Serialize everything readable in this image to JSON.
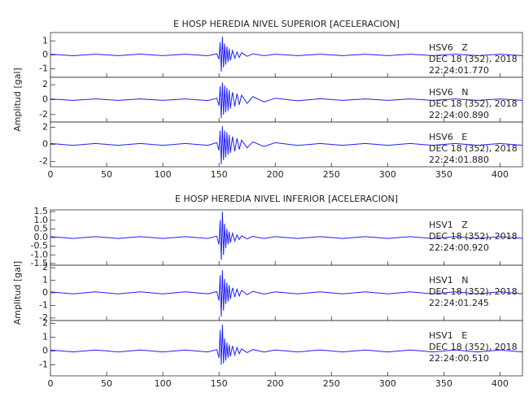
{
  "chart_data": [
    {
      "type": "line",
      "title": "E HOSP HEREDIA NIVEL SUPERIOR [ACELERACION]",
      "ylabel": "Amplitud [gal]",
      "xlim": [
        0,
        420
      ],
      "xticks": [
        0,
        50,
        100,
        150,
        200,
        250,
        300,
        350,
        400
      ],
      "x": [
        0,
        20,
        40,
        60,
        80,
        100,
        120,
        140,
        148,
        150,
        151,
        152,
        153,
        154,
        155,
        156,
        157,
        158,
        159,
        160,
        162,
        164,
        166,
        168,
        170,
        175,
        180,
        190,
        200,
        220,
        240,
        260,
        280,
        300,
        320,
        340,
        360,
        380,
        400,
        420
      ],
      "series": [
        {
          "color": "#1f1fff",
          "ylim": [
            -1.6,
            1.6
          ],
          "yticks": [
            -1,
            0,
            1
          ],
          "station": "HSV6   Z",
          "date": "DEC 18 (352), 2018",
          "time": "22:24:01.770",
          "values": [
            0.05,
            -0.06,
            0.05,
            -0.05,
            0.06,
            -0.05,
            0.05,
            -0.06,
            0.08,
            -0.3,
            0.9,
            -1.2,
            1.3,
            -0.9,
            0.8,
            -0.7,
            0.6,
            -0.5,
            0.45,
            -0.4,
            0.3,
            -0.25,
            0.2,
            -0.18,
            0.15,
            -0.1,
            0.08,
            -0.06,
            0.05,
            -0.05,
            0.05,
            -0.05,
            0.05,
            -0.05,
            0.05,
            -0.05,
            0.05,
            -0.05,
            0.05,
            -0.05
          ]
        },
        {
          "color": "#1f1fff",
          "ylim": [
            -3,
            3
          ],
          "yticks": [
            -2,
            0,
            2
          ],
          "station": "HSV6   N",
          "date": "DEC 18 (352), 2018",
          "time": "22:24:00.890",
          "values": [
            0.1,
            -0.1,
            0.1,
            -0.1,
            0.1,
            -0.1,
            0.1,
            -0.12,
            0.2,
            -0.8,
            1.8,
            -2.5,
            2.3,
            -2.0,
            1.9,
            -1.7,
            1.6,
            -1.5,
            1.3,
            -1.2,
            1.0,
            -0.9,
            0.8,
            -0.7,
            0.6,
            -0.5,
            0.4,
            -0.3,
            0.2,
            -0.15,
            0.12,
            -0.1,
            0.1,
            -0.1,
            0.1,
            -0.1,
            0.1,
            -0.1,
            0.1,
            -0.1
          ]
        },
        {
          "color": "#1f1fff",
          "ylim": [
            -2.6,
            2.6
          ],
          "yticks": [
            -2,
            0,
            2
          ],
          "station": "HSV6   E",
          "date": "DEC 18 (352), 2018",
          "time": "22:24:01.880",
          "values": [
            0.1,
            -0.1,
            0.1,
            -0.1,
            0.1,
            -0.1,
            0.1,
            -0.1,
            0.2,
            -0.7,
            1.6,
            -2.3,
            2.1,
            -1.8,
            1.6,
            -1.5,
            1.4,
            -1.2,
            1.1,
            -1.0,
            0.9,
            -0.8,
            0.7,
            -0.6,
            0.5,
            -0.4,
            0.3,
            -0.25,
            0.2,
            -0.12,
            0.1,
            -0.1,
            0.1,
            -0.1,
            0.1,
            -0.1,
            0.1,
            -0.1,
            0.1,
            -0.1
          ]
        }
      ]
    },
    {
      "type": "line",
      "title": "E HOSP HEREDIA NIVEL INFERIOR [ACELERACION]",
      "ylabel": "Amplitud [gal]",
      "xlim": [
        0,
        420
      ],
      "xticks": [
        0,
        50,
        100,
        150,
        200,
        250,
        300,
        350,
        400
      ],
      "x": [
        0,
        20,
        40,
        60,
        80,
        100,
        120,
        140,
        148,
        150,
        151,
        152,
        153,
        154,
        155,
        156,
        157,
        158,
        159,
        160,
        162,
        164,
        166,
        168,
        170,
        175,
        180,
        190,
        200,
        220,
        240,
        260,
        280,
        300,
        320,
        340,
        360,
        380,
        400,
        420
      ],
      "series": [
        {
          "color": "#1f1fff",
          "ylim": [
            -1.6,
            1.6
          ],
          "yticks": [
            {
              "value": -1.5,
              "label": "-1.5"
            },
            {
              "value": -1,
              "label": "-1.0"
            },
            -0.5,
            {
              "value": 0,
              "label": "0.0"
            },
            0.5,
            {
              "value": 1,
              "label": "1.0"
            },
            1.5
          ],
          "station": "HSV1   Z",
          "date": "DEC 18 (352), 2018",
          "time": "22:24:00.920",
          "values": [
            0.05,
            -0.05,
            0.05,
            -0.05,
            0.05,
            -0.05,
            0.05,
            -0.05,
            0.08,
            -0.4,
            1.0,
            -1.3,
            1.5,
            -1.0,
            0.8,
            -0.6,
            0.5,
            -0.4,
            0.35,
            -0.3,
            0.25,
            -0.2,
            0.15,
            -0.12,
            0.1,
            -0.08,
            0.07,
            -0.06,
            0.05,
            -0.05,
            0.05,
            -0.05,
            0.05,
            -0.05,
            0.05,
            -0.05,
            0.05,
            -0.05,
            0.05,
            -0.05
          ]
        },
        {
          "color": "#1f1fff",
          "ylim": [
            -2.2,
            2.2
          ],
          "yticks": [
            -2,
            -1,
            0,
            1,
            2
          ],
          "station": "HSV1   N",
          "date": "DEC 18 (352), 2018",
          "time": "22:24:01.245",
          "values": [
            0.08,
            -0.08,
            0.08,
            -0.08,
            0.08,
            -0.08,
            0.08,
            -0.08,
            0.1,
            -0.6,
            1.4,
            -1.9,
            1.8,
            -1.4,
            1.1,
            -0.9,
            0.8,
            -0.7,
            0.6,
            -0.5,
            0.4,
            -0.35,
            0.3,
            -0.25,
            0.2,
            -0.15,
            0.12,
            -0.1,
            0.08,
            -0.08,
            0.08,
            -0.08,
            0.08,
            -0.08,
            0.08,
            -0.08,
            0.08,
            -0.08,
            0.08,
            -0.08
          ]
        },
        {
          "color": "#1f1fff",
          "ylim": [
            -1.8,
            2.2
          ],
          "yticks": [
            -1,
            0,
            1,
            2
          ],
          "station": "HSV1   E",
          "date": "DEC 18 (352), 2018",
          "time": "22:24:00.510",
          "values": [
            0.07,
            -0.07,
            0.07,
            -0.07,
            0.07,
            -0.07,
            0.07,
            -0.07,
            0.1,
            -0.5,
            1.5,
            -1.0,
            1.9,
            -0.9,
            0.9,
            -0.7,
            0.6,
            -0.5,
            0.45,
            -0.4,
            0.35,
            -0.3,
            0.25,
            -0.2,
            0.15,
            -0.12,
            0.1,
            -0.08,
            0.07,
            -0.07,
            0.07,
            -0.07,
            0.07,
            -0.07,
            0.07,
            -0.07,
            0.07,
            -0.07,
            0.07,
            -0.07
          ]
        }
      ]
    }
  ]
}
